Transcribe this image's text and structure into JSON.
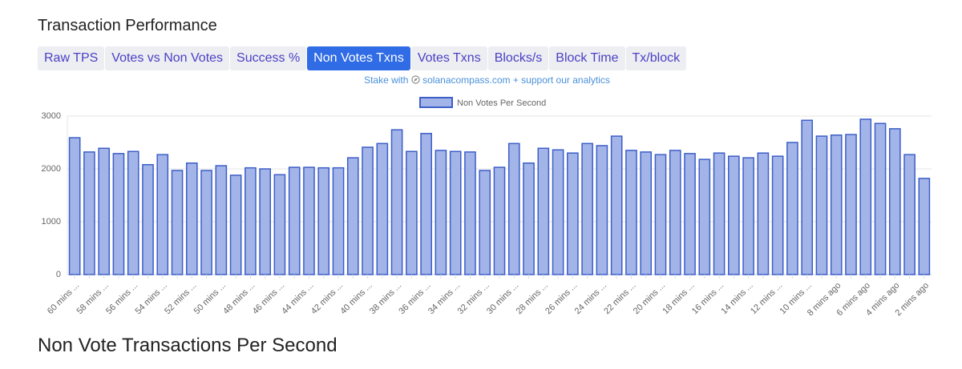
{
  "header": {
    "title": "Transaction Performance"
  },
  "tabs": [
    "Raw TPS",
    "Votes vs Non Votes",
    "Success %",
    "Non Votes Txns",
    "Votes Txns",
    "Blocks/s",
    "Block Time",
    "Tx/block"
  ],
  "active_tab": 3,
  "promo": {
    "prefix": "Stake with",
    "link": "solanacompass.com + support our analytics"
  },
  "chart_data": {
    "type": "bar",
    "categories": [
      "60 mins ...",
      null,
      "58 mins ...",
      null,
      "56 mins ...",
      null,
      "54 mins ...",
      null,
      "52 mins ...",
      null,
      "50 mins ...",
      null,
      "48 mins ...",
      null,
      "46 mins ...",
      null,
      "44 mins ...",
      null,
      "42 mins ...",
      null,
      "40 mins ...",
      null,
      "38 mins ...",
      null,
      "36 mins ...",
      null,
      "34 mins ...",
      null,
      "32 mins ...",
      null,
      "30 mins ...",
      null,
      "28 mins ...",
      null,
      "26 mins ...",
      null,
      "24 mins ...",
      null,
      "22 mins ...",
      null,
      "20 mins ...",
      null,
      "18 mins ...",
      null,
      "16 mins ...",
      null,
      "14 mins ...",
      null,
      "12 mins ...",
      null,
      "10 mins ...",
      null,
      "8 mins ago",
      null,
      "6 mins ago",
      null,
      "4 mins ago",
      null,
      "2 mins ago"
    ],
    "series": [
      {
        "name": "Non Votes Per Second",
        "color": "#a3b5e8",
        "border_color": "#3d5ec8",
        "values": [
          2590,
          2320,
          2390,
          2290,
          2330,
          2080,
          2270,
          1970,
          2110,
          1970,
          2060,
          1880,
          2020,
          2000,
          1890,
          2030,
          2030,
          2020,
          2020,
          2210,
          2410,
          2480,
          2740,
          2330,
          2670,
          2350,
          2330,
          2320,
          1970,
          2030,
          2480,
          2110,
          2390,
          2360,
          2300,
          2480,
          2440,
          2620,
          2350,
          2320,
          2270,
          2350,
          2290,
          2180,
          2300,
          2240,
          2210,
          2300,
          2240,
          2500,
          2920,
          2620,
          2640,
          2650,
          2940,
          2860,
          2760,
          2270,
          1820
        ]
      }
    ],
    "ylim": [
      0,
      3000
    ],
    "yticks": [
      0,
      1000,
      2000,
      3000
    ],
    "grid": true,
    "legend": "top"
  },
  "footer": {
    "title": "Non Vote Transactions Per Second"
  }
}
